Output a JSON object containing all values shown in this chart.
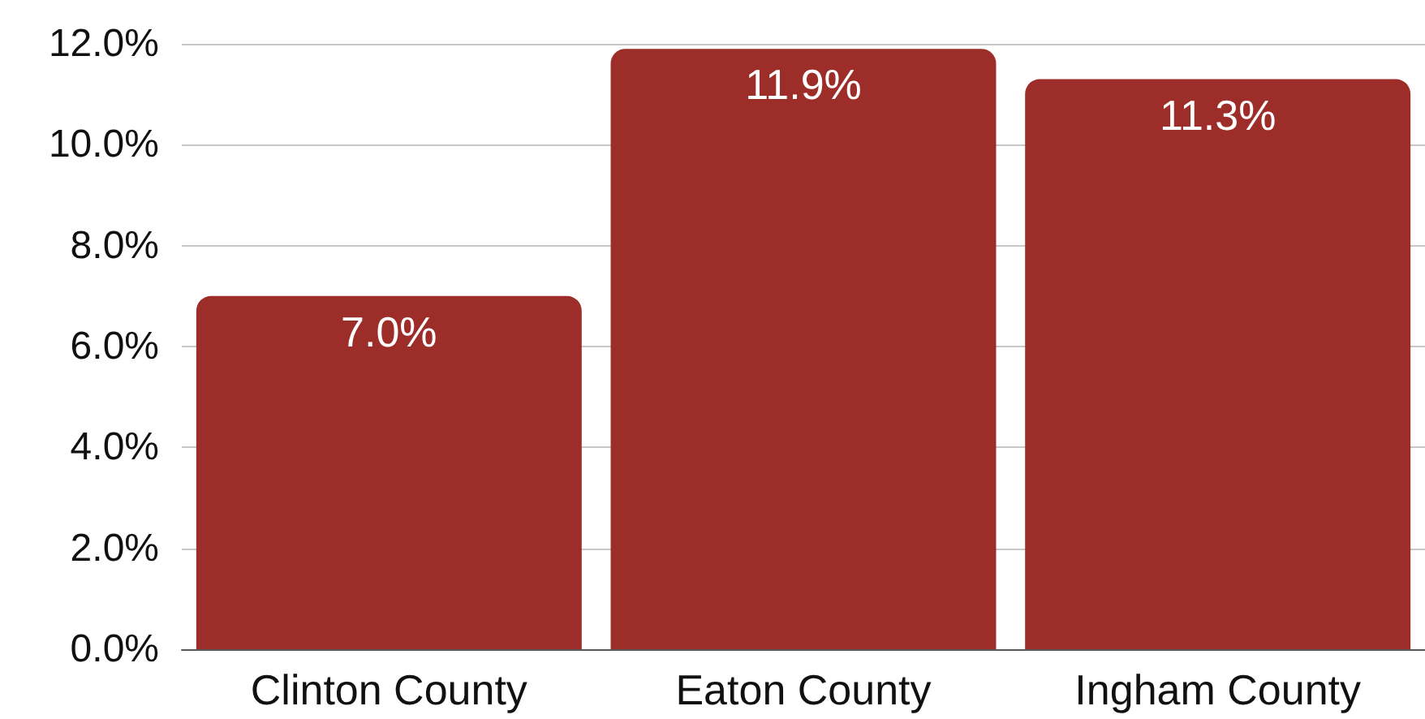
{
  "chart_data": {
    "type": "bar",
    "categories": [
      "Clinton County",
      "Eaton County",
      "Ingham County"
    ],
    "values": [
      7.0,
      11.9,
      11.3
    ],
    "color": "#9c2d28",
    "value_labels": [
      "7.0%",
      "11.9%",
      "11.3%"
    ],
    "ylim": [
      0,
      12
    ],
    "yticks": [
      {
        "value": 0,
        "label": "0.0%"
      },
      {
        "value": 2,
        "label": "2.0%"
      },
      {
        "value": 4,
        "label": "4.0%"
      },
      {
        "value": 6,
        "label": "6.0%"
      },
      {
        "value": 8,
        "label": "8.0%"
      },
      {
        "value": 10,
        "label": "10.0%"
      },
      {
        "value": 12,
        "label": "12.0%"
      }
    ],
    "grid": true
  }
}
